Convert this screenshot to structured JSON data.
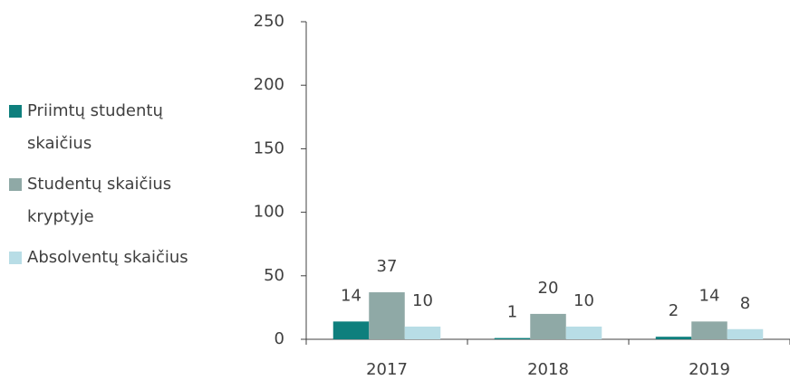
{
  "chart_data": {
    "type": "bar",
    "categories": [
      "2017",
      "2018",
      "2019"
    ],
    "series": [
      {
        "name": "Priimtų studentų skaičius",
        "color": "#0e7f7d",
        "values": [
          14,
          1,
          2
        ]
      },
      {
        "name": "Studentų skaičius kryptyje",
        "color": "#8fa9a6",
        "values": [
          37,
          20,
          14
        ]
      },
      {
        "name": "Absolventų skaičius",
        "color": "#b8dde6",
        "values": [
          10,
          10,
          8
        ]
      }
    ],
    "ylim": [
      0,
      250
    ],
    "yticks": [
      0,
      50,
      100,
      150,
      200,
      250
    ],
    "grid": false,
    "legend": "left",
    "data_labels": true
  }
}
